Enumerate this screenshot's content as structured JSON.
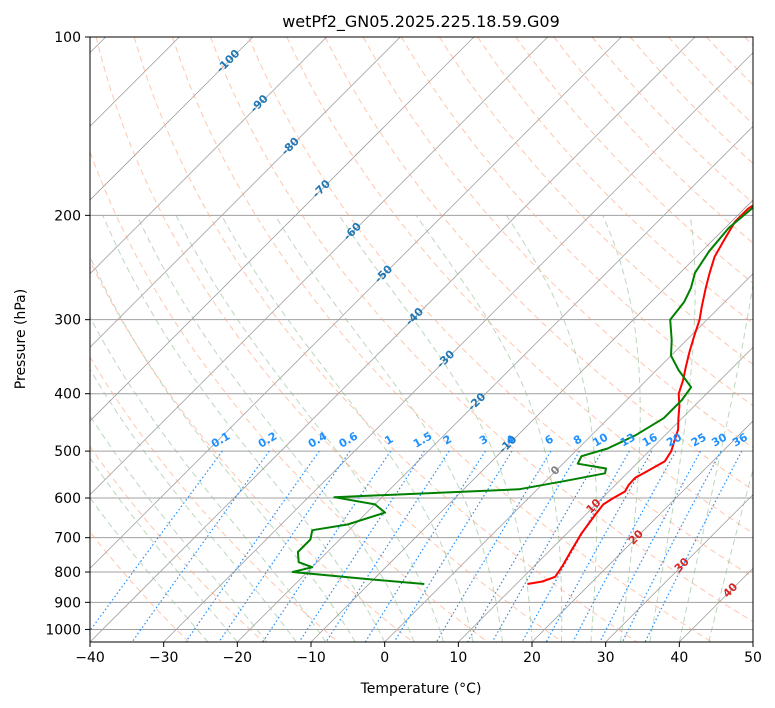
{
  "chart_data": {
    "type": "line",
    "title": "wetPf2_GN05.2025.225.18.59.G09",
    "xlabel": "Temperature (°C)",
    "ylabel": "Pressure (hPa)",
    "xlim": [
      -40,
      50
    ],
    "ylim": [
      1050,
      100
    ],
    "y_scale": "log",
    "grid": true,
    "x_ticks": [
      -40,
      -30,
      -20,
      -10,
      0,
      10,
      20,
      30,
      40,
      50
    ],
    "y_ticks": [
      100,
      200,
      300,
      400,
      500,
      600,
      700,
      800,
      900,
      1000
    ],
    "colors": {
      "temperature": "#ff0000",
      "dewpoint": "#008000",
      "isotherm": "#a0a0a0",
      "dry_adiabat": "#ffa07a",
      "moist_adiabat": "#8fbc8f",
      "mixing_ratio": "#1e90ff",
      "isotherm_label": "#1f77b4",
      "moist_label": "#d62728"
    },
    "series": [
      {
        "key": "temperature",
        "points": [
          [
            11.5,
            838
          ],
          [
            13.2,
            830
          ],
          [
            14.3,
            815
          ],
          [
            13.8,
            780
          ],
          [
            13.0,
            740
          ],
          [
            12.0,
            690
          ],
          [
            11.3,
            640
          ],
          [
            11.0,
            615
          ],
          [
            11.5,
            600
          ],
          [
            12.2,
            585
          ],
          [
            11.8,
            570
          ],
          [
            11.7,
            555
          ],
          [
            12.5,
            540
          ],
          [
            13.5,
            520
          ],
          [
            13.0,
            500
          ],
          [
            12.0,
            480
          ],
          [
            11.0,
            460
          ],
          [
            9.5,
            440
          ],
          [
            8.0,
            420
          ],
          [
            6.2,
            400
          ],
          [
            5.0,
            380
          ],
          [
            3.5,
            360
          ],
          [
            2.0,
            340
          ],
          [
            0.5,
            320
          ],
          [
            -1.0,
            300
          ],
          [
            -2.5,
            285
          ],
          [
            -4.5,
            265
          ],
          [
            -6.0,
            250
          ],
          [
            -7.5,
            235
          ],
          [
            -8.5,
            220
          ],
          [
            -9.5,
            205
          ],
          [
            -9.5,
            195
          ],
          [
            -8.0,
            180
          ],
          [
            -6.5,
            170
          ],
          [
            -3.0,
            160
          ],
          [
            2.0,
            150
          ],
          [
            7.0,
            143
          ],
          [
            9.5,
            138
          ],
          [
            10.2,
            132
          ],
          [
            10.0,
            125
          ],
          [
            9.5,
            118
          ],
          [
            9.3,
            112
          ],
          [
            9.8,
            107
          ],
          [
            11.0,
            103
          ],
          [
            12.0,
            100
          ]
        ]
      },
      {
        "key": "dewpoint",
        "points": [
          [
            -2.5,
            838
          ],
          [
            -12.0,
            820
          ],
          [
            -22.0,
            800
          ],
          [
            -20.0,
            785
          ],
          [
            -22.5,
            770
          ],
          [
            -24.0,
            740
          ],
          [
            -24.0,
            705
          ],
          [
            -25.0,
            680
          ],
          [
            -21.0,
            665
          ],
          [
            -17.5,
            635
          ],
          [
            -20.0,
            615
          ],
          [
            -26.5,
            598
          ],
          [
            -2.5,
            580
          ],
          [
            3.0,
            560
          ],
          [
            7.0,
            545
          ],
          [
            6.5,
            535
          ],
          [
            2.0,
            525
          ],
          [
            1.5,
            510
          ],
          [
            4.0,
            495
          ],
          [
            6.0,
            470
          ],
          [
            7.5,
            440
          ],
          [
            7.5,
            410
          ],
          [
            7.0,
            390
          ],
          [
            3.0,
            365
          ],
          [
            0.0,
            345
          ],
          [
            -2.0,
            325
          ],
          [
            -5.0,
            300
          ],
          [
            -5.5,
            280
          ],
          [
            -6.5,
            265
          ],
          [
            -8.0,
            250
          ],
          [
            -9.0,
            230
          ],
          [
            -9.5,
            210
          ],
          [
            -9.0,
            195
          ],
          [
            -10.0,
            180
          ],
          [
            -10.0,
            170
          ],
          [
            -11.0,
            160
          ],
          [
            -10.5,
            152
          ],
          [
            -8.0,
            146
          ],
          [
            -5.0,
            138
          ],
          [
            -3.0,
            130
          ],
          [
            -1.5,
            120
          ],
          [
            0.0,
            110
          ],
          [
            0.7,
            100
          ]
        ]
      }
    ],
    "isotherm_labels": [
      "-100",
      "-90",
      "-80",
      "-70",
      "-60",
      "-50",
      "-40",
      "-30",
      "-20",
      "-10"
    ],
    "isotherm_label_values": [
      -100,
      -90,
      -80,
      -70,
      -60,
      -50,
      -40,
      -30,
      -20,
      -10
    ],
    "mixing_ratio_labels": [
      "0.1",
      "0.2",
      "0.4",
      "0.6",
      "1",
      "1.5",
      "2",
      "3",
      "4",
      "6",
      "8",
      "10",
      "13",
      "16",
      "20",
      "25",
      "30",
      "36"
    ],
    "mixing_ratio_values": [
      0.1,
      0.2,
      0.4,
      0.6,
      1,
      1.5,
      2,
      3,
      4,
      6,
      8,
      10,
      13,
      16,
      20,
      25,
      30,
      36
    ],
    "moist_labels": [
      "0",
      "10",
      "20",
      "30",
      "40"
    ],
    "moist_label_values": [
      0,
      10,
      20,
      30,
      40
    ]
  }
}
